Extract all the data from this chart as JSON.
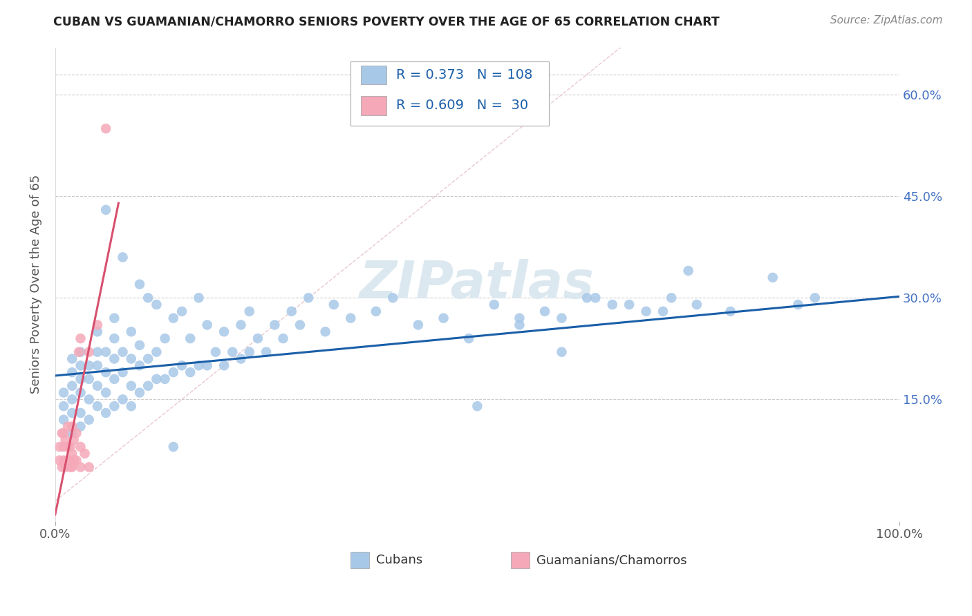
{
  "title": "CUBAN VS GUAMANIAN/CHAMORRO SENIORS POVERTY OVER THE AGE OF 65 CORRELATION CHART",
  "source": "Source: ZipAtlas.com",
  "ylabel": "Seniors Poverty Over the Age of 65",
  "xlim": [
    0,
    1.0
  ],
  "ylim": [
    -0.03,
    0.67
  ],
  "xtick_positions": [
    0.0,
    1.0
  ],
  "xticklabels": [
    "0.0%",
    "100.0%"
  ],
  "ytick_positions": [
    0.15,
    0.3,
    0.45,
    0.6
  ],
  "yticklabels_right": [
    "15.0%",
    "30.0%",
    "45.0%",
    "60.0%"
  ],
  "legend_labels": [
    "Cubans",
    "Guamanians/Chamorros"
  ],
  "legend_r_n": [
    {
      "R": "0.373",
      "N": "108"
    },
    {
      "R": "0.609",
      "N": " 30"
    }
  ],
  "blue_color": "#a8c8e8",
  "pink_color": "#f5a8b8",
  "blue_line_color": "#1a5fa8",
  "pink_line_color": "#d8506e",
  "watermark": "ZIPatlas",
  "watermark_color": "#dce8f0",
  "blue_line": {
    "x0": 0.0,
    "y0": 0.185,
    "x1": 1.0,
    "y1": 0.302
  },
  "pink_line": {
    "x0": 0.0,
    "y0": -0.02,
    "x1": 0.075,
    "y1": 0.44
  },
  "diag_line": {
    "x0": 0.0,
    "y0": 0.0,
    "x1": 0.67,
    "y1": 0.67
  },
  "cubans_x": [
    0.01,
    0.01,
    0.01,
    0.02,
    0.02,
    0.02,
    0.02,
    0.02,
    0.02,
    0.03,
    0.03,
    0.03,
    0.03,
    0.03,
    0.03,
    0.04,
    0.04,
    0.04,
    0.04,
    0.05,
    0.05,
    0.05,
    0.05,
    0.05,
    0.06,
    0.06,
    0.06,
    0.06,
    0.06,
    0.07,
    0.07,
    0.07,
    0.07,
    0.07,
    0.08,
    0.08,
    0.08,
    0.08,
    0.09,
    0.09,
    0.09,
    0.09,
    0.1,
    0.1,
    0.1,
    0.1,
    0.11,
    0.11,
    0.11,
    0.12,
    0.12,
    0.12,
    0.13,
    0.13,
    0.14,
    0.14,
    0.14,
    0.15,
    0.15,
    0.16,
    0.16,
    0.17,
    0.17,
    0.18,
    0.18,
    0.19,
    0.2,
    0.2,
    0.21,
    0.22,
    0.22,
    0.23,
    0.23,
    0.24,
    0.25,
    0.26,
    0.27,
    0.28,
    0.29,
    0.3,
    0.32,
    0.33,
    0.35,
    0.38,
    0.4,
    0.43,
    0.46,
    0.49,
    0.52,
    0.55,
    0.58,
    0.6,
    0.63,
    0.66,
    0.7,
    0.73,
    0.76,
    0.8,
    0.85,
    0.9,
    0.5,
    0.55,
    0.6,
    0.64,
    0.68,
    0.72,
    0.75,
    0.88
  ],
  "cubans_y": [
    0.12,
    0.14,
    0.16,
    0.1,
    0.13,
    0.15,
    0.17,
    0.19,
    0.21,
    0.11,
    0.13,
    0.16,
    0.18,
    0.2,
    0.22,
    0.12,
    0.15,
    0.18,
    0.2,
    0.14,
    0.17,
    0.2,
    0.22,
    0.25,
    0.13,
    0.16,
    0.19,
    0.22,
    0.43,
    0.14,
    0.18,
    0.21,
    0.24,
    0.27,
    0.15,
    0.19,
    0.22,
    0.36,
    0.14,
    0.17,
    0.21,
    0.25,
    0.16,
    0.2,
    0.23,
    0.32,
    0.17,
    0.21,
    0.3,
    0.18,
    0.22,
    0.29,
    0.18,
    0.24,
    0.08,
    0.19,
    0.27,
    0.2,
    0.28,
    0.19,
    0.24,
    0.2,
    0.3,
    0.2,
    0.26,
    0.22,
    0.2,
    0.25,
    0.22,
    0.21,
    0.26,
    0.22,
    0.28,
    0.24,
    0.22,
    0.26,
    0.24,
    0.28,
    0.26,
    0.3,
    0.25,
    0.29,
    0.27,
    0.28,
    0.3,
    0.26,
    0.27,
    0.24,
    0.29,
    0.27,
    0.28,
    0.27,
    0.3,
    0.29,
    0.28,
    0.3,
    0.29,
    0.28,
    0.33,
    0.3,
    0.14,
    0.26,
    0.22,
    0.3,
    0.29,
    0.28,
    0.34,
    0.29
  ],
  "guam_x": [
    0.005,
    0.005,
    0.008,
    0.008,
    0.01,
    0.01,
    0.01,
    0.012,
    0.012,
    0.015,
    0.015,
    0.015,
    0.018,
    0.018,
    0.02,
    0.02,
    0.02,
    0.022,
    0.022,
    0.025,
    0.025,
    0.028,
    0.03,
    0.03,
    0.03,
    0.035,
    0.04,
    0.04,
    0.05,
    0.06
  ],
  "guam_y": [
    0.06,
    0.08,
    0.05,
    0.1,
    0.06,
    0.08,
    0.1,
    0.05,
    0.09,
    0.06,
    0.08,
    0.11,
    0.05,
    0.08,
    0.05,
    0.07,
    0.11,
    0.06,
    0.09,
    0.06,
    0.1,
    0.22,
    0.05,
    0.08,
    0.24,
    0.07,
    0.05,
    0.22,
    0.26,
    0.55
  ]
}
